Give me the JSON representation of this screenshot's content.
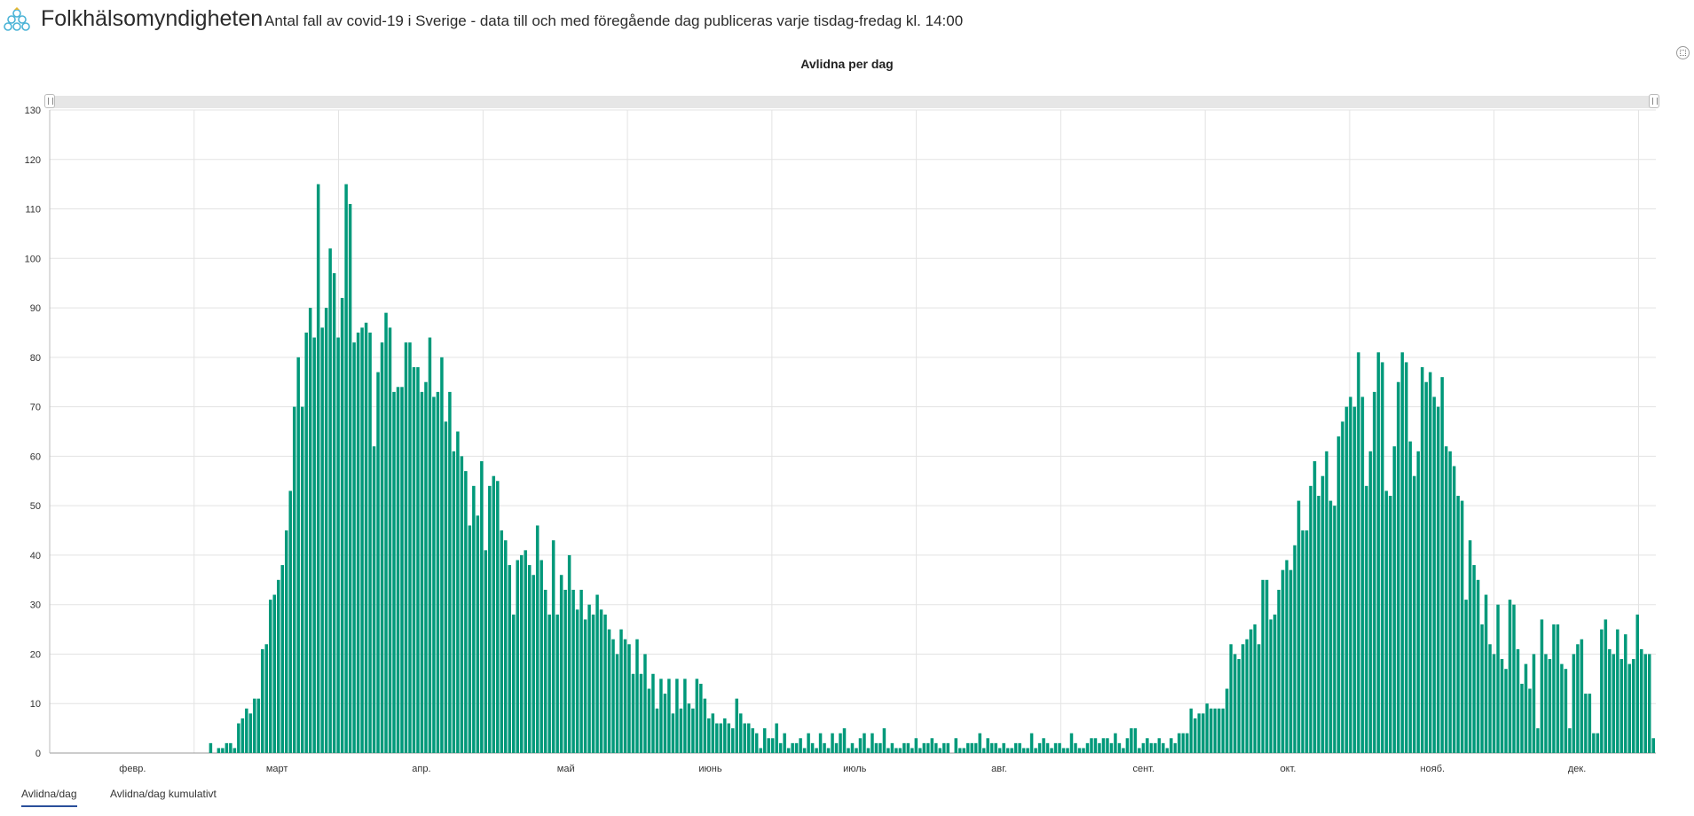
{
  "header": {
    "brand": "Folkhälsomyndigheten",
    "subtitle": "Antal fall av covid-19 i Sverige - data till och med föregående dag publiceras varje tisdag-fredag kl. 14:00",
    "logo_icon": "folkhalsomyndigheten-logo"
  },
  "tabs": [
    {
      "label": "Avlidna/dag",
      "active": true
    },
    {
      "label": "Avlidna/dag kumulativt",
      "active": false
    }
  ],
  "colors": {
    "bar": "#00997a",
    "grid": "#e3e3e3",
    "tab_underline": "#2a4f9a"
  },
  "chart_data": {
    "type": "bar",
    "title": "Avlidna per dag",
    "xlabel": "",
    "ylabel": "",
    "ylim": [
      0,
      130
    ],
    "yticks": [
      0,
      10,
      20,
      30,
      40,
      50,
      60,
      70,
      80,
      90,
      100,
      110,
      120,
      130
    ],
    "grid": true,
    "month_labels": [
      "февр.",
      "март",
      "апр.",
      "май",
      "июнь",
      "июль",
      "авг.",
      "сент.",
      "окт.",
      "нояб.",
      "дек."
    ],
    "series": [
      {
        "values": [
          0,
          0,
          0,
          0,
          0,
          0,
          0,
          0,
          0,
          0,
          0,
          0,
          0,
          0,
          0,
          0,
          0,
          0,
          0,
          0,
          0,
          0,
          0,
          0,
          0,
          0,
          0,
          0,
          0,
          0,
          0,
          0,
          0,
          0,
          0,
          0,
          0,
          0,
          0,
          0,
          2,
          0,
          1,
          1,
          2,
          2,
          1,
          6,
          7,
          9,
          8,
          11,
          11,
          21,
          22,
          31,
          32,
          35,
          38,
          45,
          53,
          70,
          80,
          70,
          85,
          90,
          84,
          115,
          86,
          90,
          102,
          97,
          84,
          92,
          115,
          111,
          83,
          85,
          86,
          87,
          85,
          62,
          77,
          83,
          89,
          86,
          73,
          74,
          74,
          83,
          83,
          78,
          78,
          73,
          75,
          84,
          72,
          73,
          80,
          67,
          73,
          61,
          65,
          60,
          57,
          46,
          54,
          48,
          59,
          41,
          54,
          56,
          55,
          45,
          43,
          38,
          28,
          39,
          40,
          41,
          38,
          36,
          46,
          39,
          33,
          28,
          43,
          28,
          36,
          33,
          40,
          33,
          29,
          33,
          27,
          30,
          28,
          32,
          29,
          28,
          25,
          23,
          20,
          25,
          23,
          22,
          16,
          23,
          16,
          20,
          13,
          16,
          9,
          15,
          12,
          15,
          8,
          15,
          9,
          15,
          10,
          9,
          15,
          14,
          11,
          7,
          8,
          6,
          6,
          7,
          6,
          5,
          11,
          8,
          6,
          6,
          5,
          4,
          1,
          5,
          3,
          3,
          6,
          2,
          4,
          1,
          2,
          2,
          3,
          1,
          4,
          2,
          1,
          4,
          2,
          1,
          4,
          2,
          4,
          5,
          1,
          2,
          1,
          3,
          4,
          1,
          4,
          2,
          2,
          5,
          1,
          2,
          1,
          1,
          2,
          2,
          1,
          3,
          1,
          2,
          2,
          3,
          2,
          1,
          2,
          2,
          0,
          3,
          1,
          1,
          2,
          2,
          2,
          4,
          1,
          3,
          2,
          2,
          1,
          2,
          1,
          1,
          2,
          2,
          1,
          1,
          4,
          1,
          2,
          3,
          2,
          1,
          2,
          2,
          1,
          1,
          4,
          2,
          1,
          1,
          2,
          3,
          3,
          2,
          3,
          3,
          2,
          4,
          2,
          1,
          3,
          5,
          5,
          1,
          2,
          3,
          2,
          2,
          3,
          2,
          1,
          3,
          2,
          4,
          4,
          4,
          9,
          7,
          8,
          8,
          10,
          9,
          9,
          9,
          9,
          13,
          22,
          20,
          19,
          22,
          23,
          25,
          26,
          22,
          35,
          35,
          27,
          28,
          33,
          37,
          39,
          37,
          42,
          51,
          45,
          45,
          54,
          59,
          52,
          56,
          61,
          51,
          50,
          64,
          67,
          70,
          72,
          70,
          81,
          72,
          54,
          61,
          73,
          81,
          79,
          53,
          52,
          62,
          75,
          81,
          79,
          63,
          56,
          61,
          78,
          75,
          77,
          72,
          70,
          76,
          62,
          61,
          58,
          52,
          51,
          31,
          43,
          38,
          35,
          26,
          32,
          22,
          20,
          30,
          19,
          17,
          31,
          30,
          21,
          14,
          18,
          13,
          20,
          5,
          27,
          20,
          19,
          26,
          26,
          18,
          17,
          5,
          20,
          22,
          23,
          12,
          12,
          4,
          4,
          25,
          27,
          21,
          20,
          25,
          19,
          24,
          18,
          19,
          28,
          21,
          20,
          20,
          3
        ]
      }
    ]
  }
}
